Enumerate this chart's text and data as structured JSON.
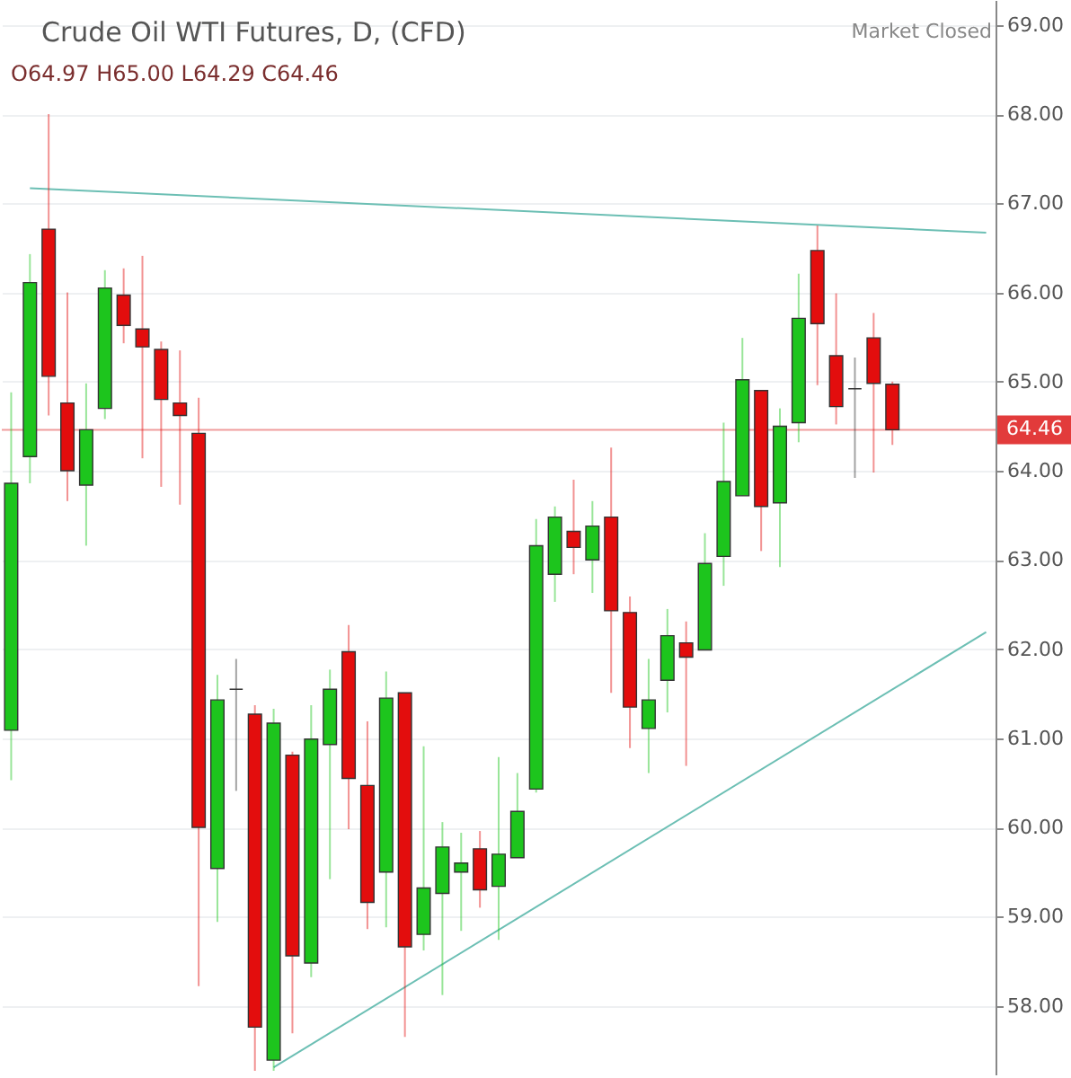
{
  "chart_data": {
    "type": "candlestick",
    "title": "Crude Oil WTI Futures, D, (CFD)",
    "annotations": [
      "O64.97 H65.00 L64.29 C64.46",
      "Market Closed"
    ],
    "categories": [
      null,
      null,
      null,
      null,
      null,
      null,
      null,
      null,
      null,
      null,
      null,
      null,
      null,
      null,
      null,
      null,
      null,
      null,
      null,
      null,
      null,
      null,
      null,
      null,
      null,
      null,
      null,
      null,
      null,
      null,
      null,
      null,
      null,
      null,
      null,
      null,
      null,
      null,
      null,
      null,
      null,
      null,
      null,
      null,
      null,
      null,
      null,
      null,
      null,
      null,
      null,
      null,
      null
    ],
    "ohlc": [
      [
        61.09,
        64.88,
        60.53,
        63.86
      ],
      [
        64.16,
        66.43,
        63.86,
        66.11
      ],
      [
        66.71,
        68.0,
        64.62,
        65.06
      ],
      [
        64.76,
        66.0,
        63.66,
        64.0
      ],
      [
        63.84,
        64.98,
        63.16,
        64.46
      ],
      [
        64.7,
        66.25,
        64.58,
        66.05
      ],
      [
        65.97,
        66.27,
        65.43,
        65.63
      ],
      [
        65.59,
        66.41,
        64.14,
        65.39
      ],
      [
        65.36,
        65.45,
        63.82,
        64.8
      ],
      [
        64.76,
        65.35,
        63.62,
        64.62
      ],
      [
        64.42,
        64.82,
        58.22,
        60.0
      ],
      [
        59.54,
        61.71,
        58.94,
        61.43
      ],
      [
        61.55,
        61.89,
        60.41,
        61.55
      ],
      [
        61.27,
        61.37,
        57.27,
        57.76
      ],
      [
        57.39,
        61.33,
        57.27,
        61.17
      ],
      [
        60.81,
        60.85,
        57.69,
        58.56
      ],
      [
        58.48,
        61.37,
        58.32,
        60.99
      ],
      [
        60.93,
        61.77,
        59.42,
        61.55
      ],
      [
        61.97,
        62.27,
        59.98,
        60.55
      ],
      [
        60.47,
        61.19,
        58.86,
        59.16
      ],
      [
        59.5,
        61.75,
        58.88,
        61.45
      ],
      [
        61.51,
        61.51,
        57.65,
        58.66
      ],
      [
        58.8,
        60.91,
        58.62,
        59.32
      ],
      [
        59.26,
        60.06,
        58.12,
        59.78
      ],
      [
        59.5,
        59.94,
        58.84,
        59.6
      ],
      [
        59.76,
        59.96,
        59.1,
        59.3
      ],
      [
        59.34,
        60.79,
        58.74,
        59.7
      ],
      [
        59.66,
        60.61,
        59.66,
        60.18
      ],
      [
        60.43,
        63.46,
        60.39,
        63.16
      ],
      [
        62.84,
        63.6,
        62.53,
        63.48
      ],
      [
        63.32,
        63.9,
        62.84,
        63.14
      ],
      [
        63.0,
        63.66,
        62.63,
        63.38
      ],
      [
        63.48,
        64.26,
        61.51,
        62.43
      ],
      [
        62.41,
        62.59,
        60.89,
        61.35
      ],
      [
        61.11,
        61.89,
        60.61,
        61.43
      ],
      [
        61.65,
        62.45,
        61.29,
        62.15
      ],
      [
        62.07,
        62.31,
        60.69,
        61.91
      ],
      [
        61.99,
        63.3,
        61.99,
        62.96
      ],
      [
        63.04,
        64.54,
        62.71,
        63.88
      ],
      [
        63.72,
        65.49,
        63.72,
        65.02
      ],
      [
        64.9,
        64.9,
        63.1,
        63.6
      ],
      [
        63.64,
        64.7,
        62.92,
        64.5
      ],
      [
        64.54,
        66.21,
        64.32,
        65.71
      ],
      [
        66.47,
        66.75,
        64.96,
        65.65
      ],
      [
        65.29,
        65.99,
        64.52,
        64.72
      ],
      [
        64.92,
        65.27,
        63.92,
        64.92
      ],
      [
        65.49,
        65.77,
        63.98,
        64.98
      ],
      [
        64.97,
        65.0,
        64.29,
        64.46
      ],
      null,
      null,
      null,
      null,
      null
    ],
    "colors": [
      "#1dc51d",
      "#1dc51d",
      "#e30d0d",
      "#e30d0d",
      "#1dc51d",
      "#1dc51d",
      "#e30d0d",
      "#e30d0d",
      "#e30d0d",
      "#e30d0d",
      "#e30d0d",
      "#1dc51d",
      "#333333",
      "#e30d0d",
      "#1dc51d",
      "#e30d0d",
      "#1dc51d",
      "#1dc51d",
      "#e30d0d",
      "#e30d0d",
      "#1dc51d",
      "#e30d0d",
      "#1dc51d",
      "#1dc51d",
      "#1dc51d",
      "#e30d0d",
      "#1dc51d",
      "#1dc51d",
      "#1dc51d",
      "#1dc51d",
      "#e30d0d",
      "#1dc51d",
      "#e30d0d",
      "#e30d0d",
      "#1dc51d",
      "#1dc51d",
      "#e30d0d",
      "#1dc51d",
      "#1dc51d",
      "#1dc51d",
      "#e30d0d",
      "#1dc51d",
      "#1dc51d",
      "#e30d0d",
      "#e30d0d",
      "#333333",
      "#e30d0d",
      "#e30d0d",
      null,
      null,
      null,
      null,
      null
    ],
    "series": [
      {
        "type": "line",
        "color": "#6cbfb4",
        "values": [
          null,
          67.17,
          null,
          null,
          null,
          null,
          null,
          null,
          null,
          null,
          null,
          null,
          null,
          null,
          null,
          null,
          null,
          null,
          null,
          null,
          null,
          null,
          null,
          null,
          null,
          null,
          null,
          null,
          null,
          null,
          null,
          null,
          null,
          null,
          null,
          null,
          null,
          null,
          null,
          null,
          null,
          null,
          null,
          null,
          null,
          null,
          null,
          null,
          null,
          null,
          null,
          null,
          66.67
        ]
      },
      {
        "type": "line",
        "color": "#6cbfb4",
        "values": [
          null,
          null,
          null,
          null,
          null,
          null,
          null,
          null,
          null,
          null,
          null,
          null,
          null,
          null,
          57.31,
          null,
          null,
          null,
          null,
          null,
          null,
          null,
          null,
          null,
          null,
          null,
          null,
          null,
          null,
          null,
          null,
          null,
          null,
          null,
          null,
          null,
          null,
          null,
          null,
          null,
          null,
          null,
          null,
          null,
          null,
          null,
          null,
          null,
          null,
          null,
          null,
          null,
          62.19
        ]
      }
    ],
    "ref_lines": [
      {
        "axis": "y",
        "value": 64.46,
        "label": "64.46",
        "color": "#e23b3b"
      }
    ],
    "ylim": [
      57.23,
      69.28
    ],
    "yticks": [
      {
        "value": 58,
        "label": "58.00"
      },
      {
        "value": 59,
        "label": "59.00"
      },
      {
        "value": 60,
        "label": "60.00"
      },
      {
        "value": 61,
        "label": "61.00"
      },
      {
        "value": 62,
        "label": "62.00"
      },
      {
        "value": 63,
        "label": "63.00"
      },
      {
        "value": 64,
        "label": "64.00"
      },
      {
        "value": 65,
        "label": "65.00"
      },
      {
        "value": 66,
        "label": "66.00"
      },
      {
        "value": 67,
        "label": "67.00"
      },
      {
        "value": 68,
        "label": "68.00"
      },
      {
        "value": 69,
        "label": "69.00"
      }
    ],
    "grid": "y",
    "tick_labels": "y"
  }
}
